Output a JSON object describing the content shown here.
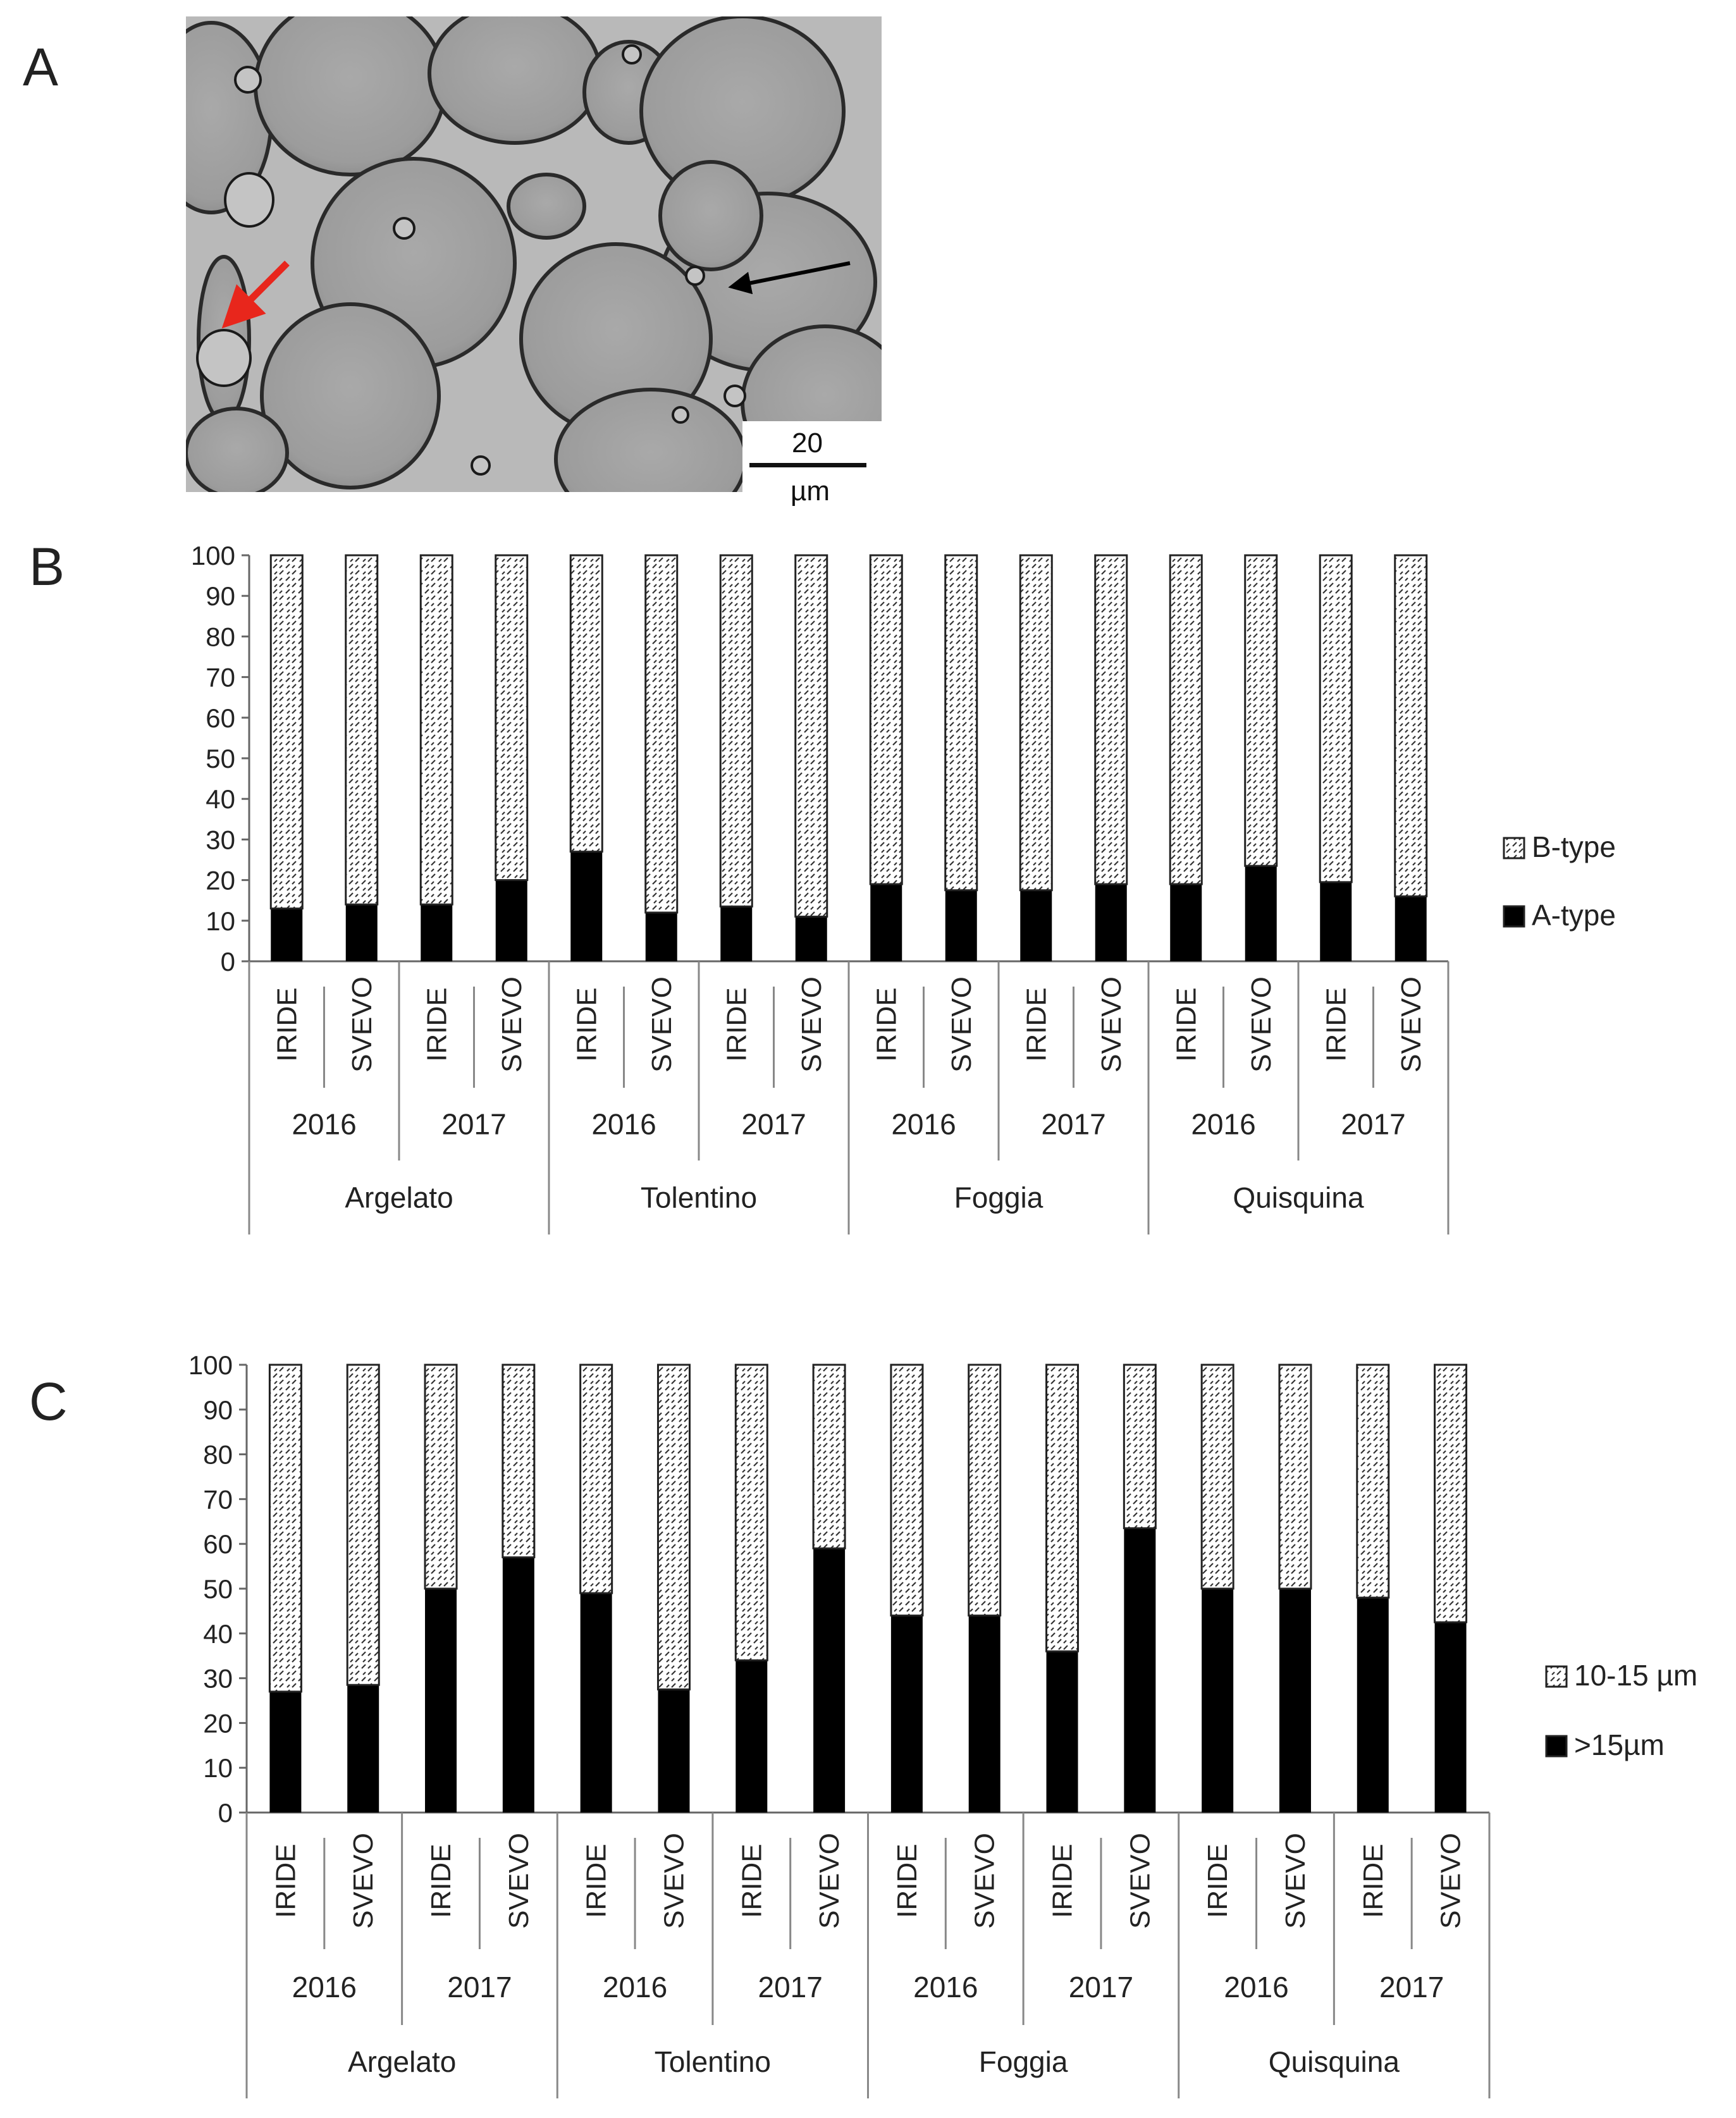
{
  "panels": {
    "A": {
      "letter": "A",
      "scale_bar": {
        "value": "20",
        "unit": "µm"
      }
    },
    "B": {
      "letter": "B"
    },
    "C": {
      "letter": "C"
    }
  },
  "colors": {
    "black_series": "#000000",
    "hatched_series_fill": "#ffffff",
    "hatch_stroke": "#333333",
    "red_arrow": "#e8261c",
    "black_arrow": "#000000"
  },
  "chart_data": [
    {
      "panel": "B",
      "type": "bar",
      "stacked": true,
      "ylim": [
        0,
        100
      ],
      "yticks": [
        0,
        10,
        20,
        30,
        40,
        50,
        60,
        70,
        80,
        90,
        100
      ],
      "grid": false,
      "legend_position": "right",
      "varieties": [
        "IRIDE",
        "SVEVO",
        "IRIDE",
        "SVEVO",
        "IRIDE",
        "SVEVO",
        "IRIDE",
        "SVEVO",
        "IRIDE",
        "SVEVO",
        "IRIDE",
        "SVEVO",
        "IRIDE",
        "SVEVO",
        "IRIDE",
        "SVEVO"
      ],
      "years": [
        "2016",
        "2017",
        "2016",
        "2017",
        "2016",
        "2017",
        "2016",
        "2017"
      ],
      "locations": [
        "Argelato",
        "Tolentino",
        "Foggia",
        "Quisquina"
      ],
      "series": [
        {
          "name": "A-type",
          "pattern": "solid",
          "values": [
            13,
            14,
            14,
            20,
            27,
            12,
            13.5,
            11,
            19,
            17.5,
            17.5,
            19,
            19,
            23.5,
            19.5,
            16
          ]
        },
        {
          "name": "B-type",
          "pattern": "hatched",
          "values": [
            87,
            86,
            86,
            80,
            73,
            88,
            86.5,
            89,
            81,
            82.5,
            82.5,
            81,
            81,
            76.5,
            80.5,
            84
          ]
        }
      ],
      "legend": [
        {
          "label": "B-type",
          "pattern": "hatched"
        },
        {
          "label": "A-type",
          "pattern": "solid"
        }
      ]
    },
    {
      "panel": "C",
      "type": "bar",
      "stacked": true,
      "ylim": [
        0,
        100
      ],
      "yticks": [
        0,
        10,
        20,
        30,
        40,
        50,
        60,
        70,
        80,
        90,
        100
      ],
      "grid": false,
      "legend_position": "right",
      "varieties": [
        "IRIDE",
        "SVEVO",
        "IRIDE",
        "SVEVO",
        "IRIDE",
        "SVEVO",
        "IRIDE",
        "SVEVO",
        "IRIDE",
        "SVEVO",
        "IRIDE",
        "SVEVO",
        "IRIDE",
        "SVEVO",
        "IRIDE",
        "SVEVO"
      ],
      "years": [
        "2016",
        "2017",
        "2016",
        "2017",
        "2016",
        "2017",
        "2016",
        "2017"
      ],
      "locations": [
        "Argelato",
        "Tolentino",
        "Foggia",
        "Quisquina"
      ],
      "series": [
        {
          "name": ">15µm",
          "pattern": "solid",
          "values": [
            27,
            28.5,
            50,
            57,
            49,
            27.5,
            34,
            59,
            44,
            44,
            36,
            63.5,
            50,
            50,
            48,
            42.5
          ]
        },
        {
          "name": "10-15 µm",
          "pattern": "hatched",
          "values": [
            73,
            71.5,
            50,
            43,
            51,
            72.5,
            66,
            41,
            56,
            56,
            64,
            36.5,
            50,
            50,
            52,
            57.5
          ]
        }
      ],
      "legend": [
        {
          "label": "10-15 µm",
          "pattern": "hatched"
        },
        {
          "label": ">15µm",
          "pattern": "solid"
        }
      ]
    }
  ]
}
